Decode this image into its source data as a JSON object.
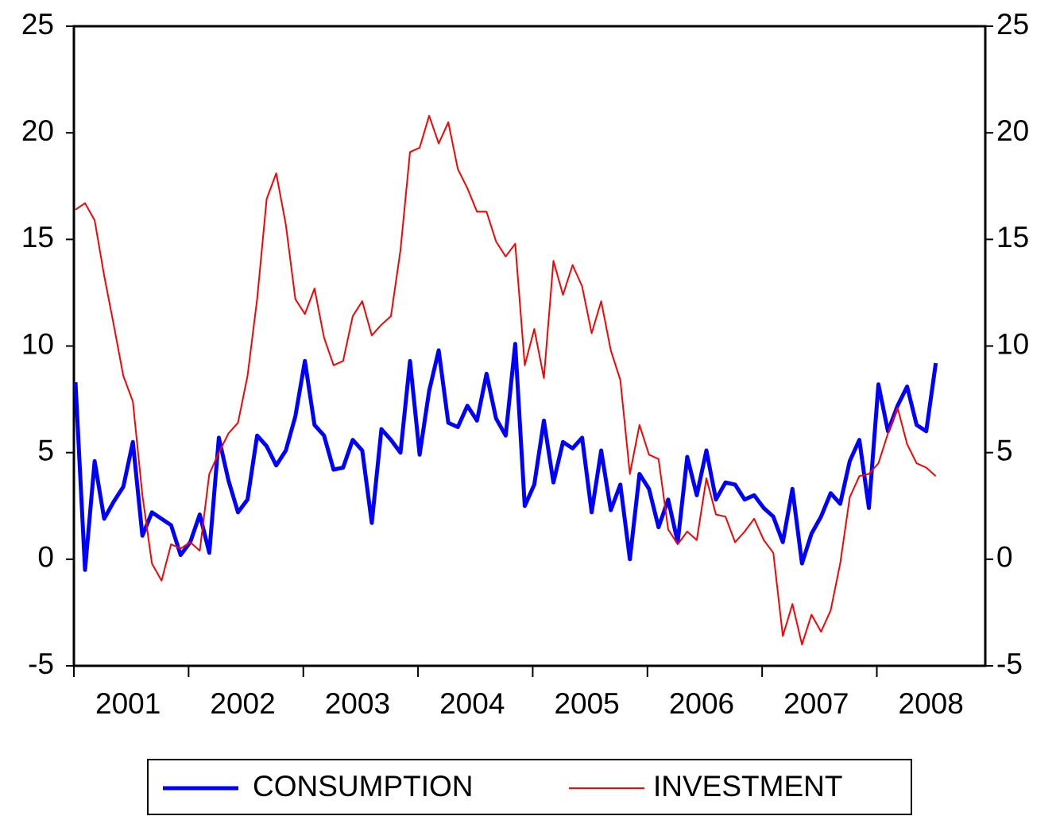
{
  "chart_data": {
    "type": "line",
    "categories": [
      null,
      null,
      null,
      null,
      null,
      null,
      "2001",
      null,
      null,
      null,
      null,
      null,
      null,
      null,
      null,
      null,
      null,
      null,
      "2002",
      null,
      null,
      null,
      null,
      null,
      null,
      null,
      null,
      null,
      null,
      null,
      "2003",
      null,
      null,
      null,
      null,
      null,
      null,
      null,
      null,
      null,
      null,
      null,
      "2004",
      null,
      null,
      null,
      null,
      null,
      null,
      null,
      null,
      null,
      null,
      null,
      "2005",
      null,
      null,
      null,
      null,
      null,
      null,
      null,
      null,
      null,
      null,
      null,
      "2006",
      null,
      null,
      null,
      null,
      null,
      null,
      null,
      null,
      null,
      null,
      null,
      "2007",
      null,
      null,
      null,
      null,
      null,
      null,
      null,
      null,
      null,
      null,
      null,
      "2008"
    ],
    "series": [
      {
        "name": "CONSUMPTION",
        "color": "#0000ff",
        "values": [
          8.3,
          -0.5,
          4.6,
          1.9,
          2.7,
          3.4,
          5.5,
          1.1,
          2.2,
          1.9,
          1.6,
          0.2,
          0.8,
          2.1,
          0.3,
          5.7,
          3.7,
          2.2,
          2.8,
          5.8,
          5.3,
          4.4,
          5.1,
          6.7,
          9.3,
          6.3,
          5.8,
          4.2,
          4.3,
          5.6,
          5.1,
          1.7,
          6.1,
          5.6,
          5.0,
          9.3,
          4.9,
          7.9,
          9.8,
          6.4,
          6.2,
          7.2,
          6.5,
          8.7,
          6.6,
          5.8,
          10.1,
          2.5,
          3.5,
          6.5,
          3.6,
          5.5,
          5.2,
          5.7,
          2.2,
          5.1,
          2.3,
          3.5,
          0.0,
          4.0,
          3.3,
          1.5,
          2.8,
          0.8,
          4.8,
          3.0,
          5.1,
          2.8,
          3.6,
          3.5,
          2.8,
          3.0,
          2.4,
          2.0,
          0.8,
          3.3,
          -0.2,
          1.2,
          2.0,
          3.1,
          2.6,
          4.6,
          5.6,
          2.4,
          8.2,
          6.0,
          7.2,
          8.1,
          6.3,
          6.0,
          9.2
        ]
      },
      {
        "name": "INVESTMENT",
        "color": "#ff0000",
        "values": [
          16.4,
          16.7,
          15.9,
          13.3,
          11.0,
          8.6,
          7.4,
          3.0,
          -0.2,
          -1.0,
          0.7,
          0.5,
          0.8,
          0.4,
          4.0,
          5.0,
          5.9,
          6.4,
          8.6,
          12.2,
          16.9,
          18.1,
          15.7,
          12.2,
          11.5,
          12.7,
          10.4,
          9.1,
          9.3,
          11.4,
          12.1,
          10.5,
          11.0,
          11.4,
          14.5,
          19.1,
          19.3,
          20.8,
          19.5,
          20.5,
          18.3,
          17.4,
          16.3,
          16.3,
          14.9,
          14.2,
          14.8,
          9.1,
          10.8,
          8.5,
          14.0,
          12.4,
          13.8,
          12.8,
          10.6,
          12.1,
          9.8,
          8.4,
          4.0,
          6.3,
          4.9,
          4.7,
          1.4,
          0.7,
          1.3,
          0.9,
          3.8,
          2.1,
          2.0,
          0.8,
          1.3,
          1.9,
          0.9,
          0.3,
          -3.6,
          -2.1,
          -4.0,
          -2.6,
          -3.4,
          -2.4,
          -0.2,
          2.9,
          3.9,
          4.0,
          4.5,
          5.9,
          7.1,
          5.4,
          4.5,
          4.3,
          3.9
        ]
      }
    ],
    "ylim": [
      -5,
      25
    ],
    "yticks": [
      -5,
      0,
      5,
      10,
      15,
      20,
      25
    ],
    "y2lim": [
      -5,
      25
    ],
    "y2ticks": [
      -5,
      0,
      5,
      10,
      15,
      20,
      25
    ],
    "legend": "bottom"
  }
}
